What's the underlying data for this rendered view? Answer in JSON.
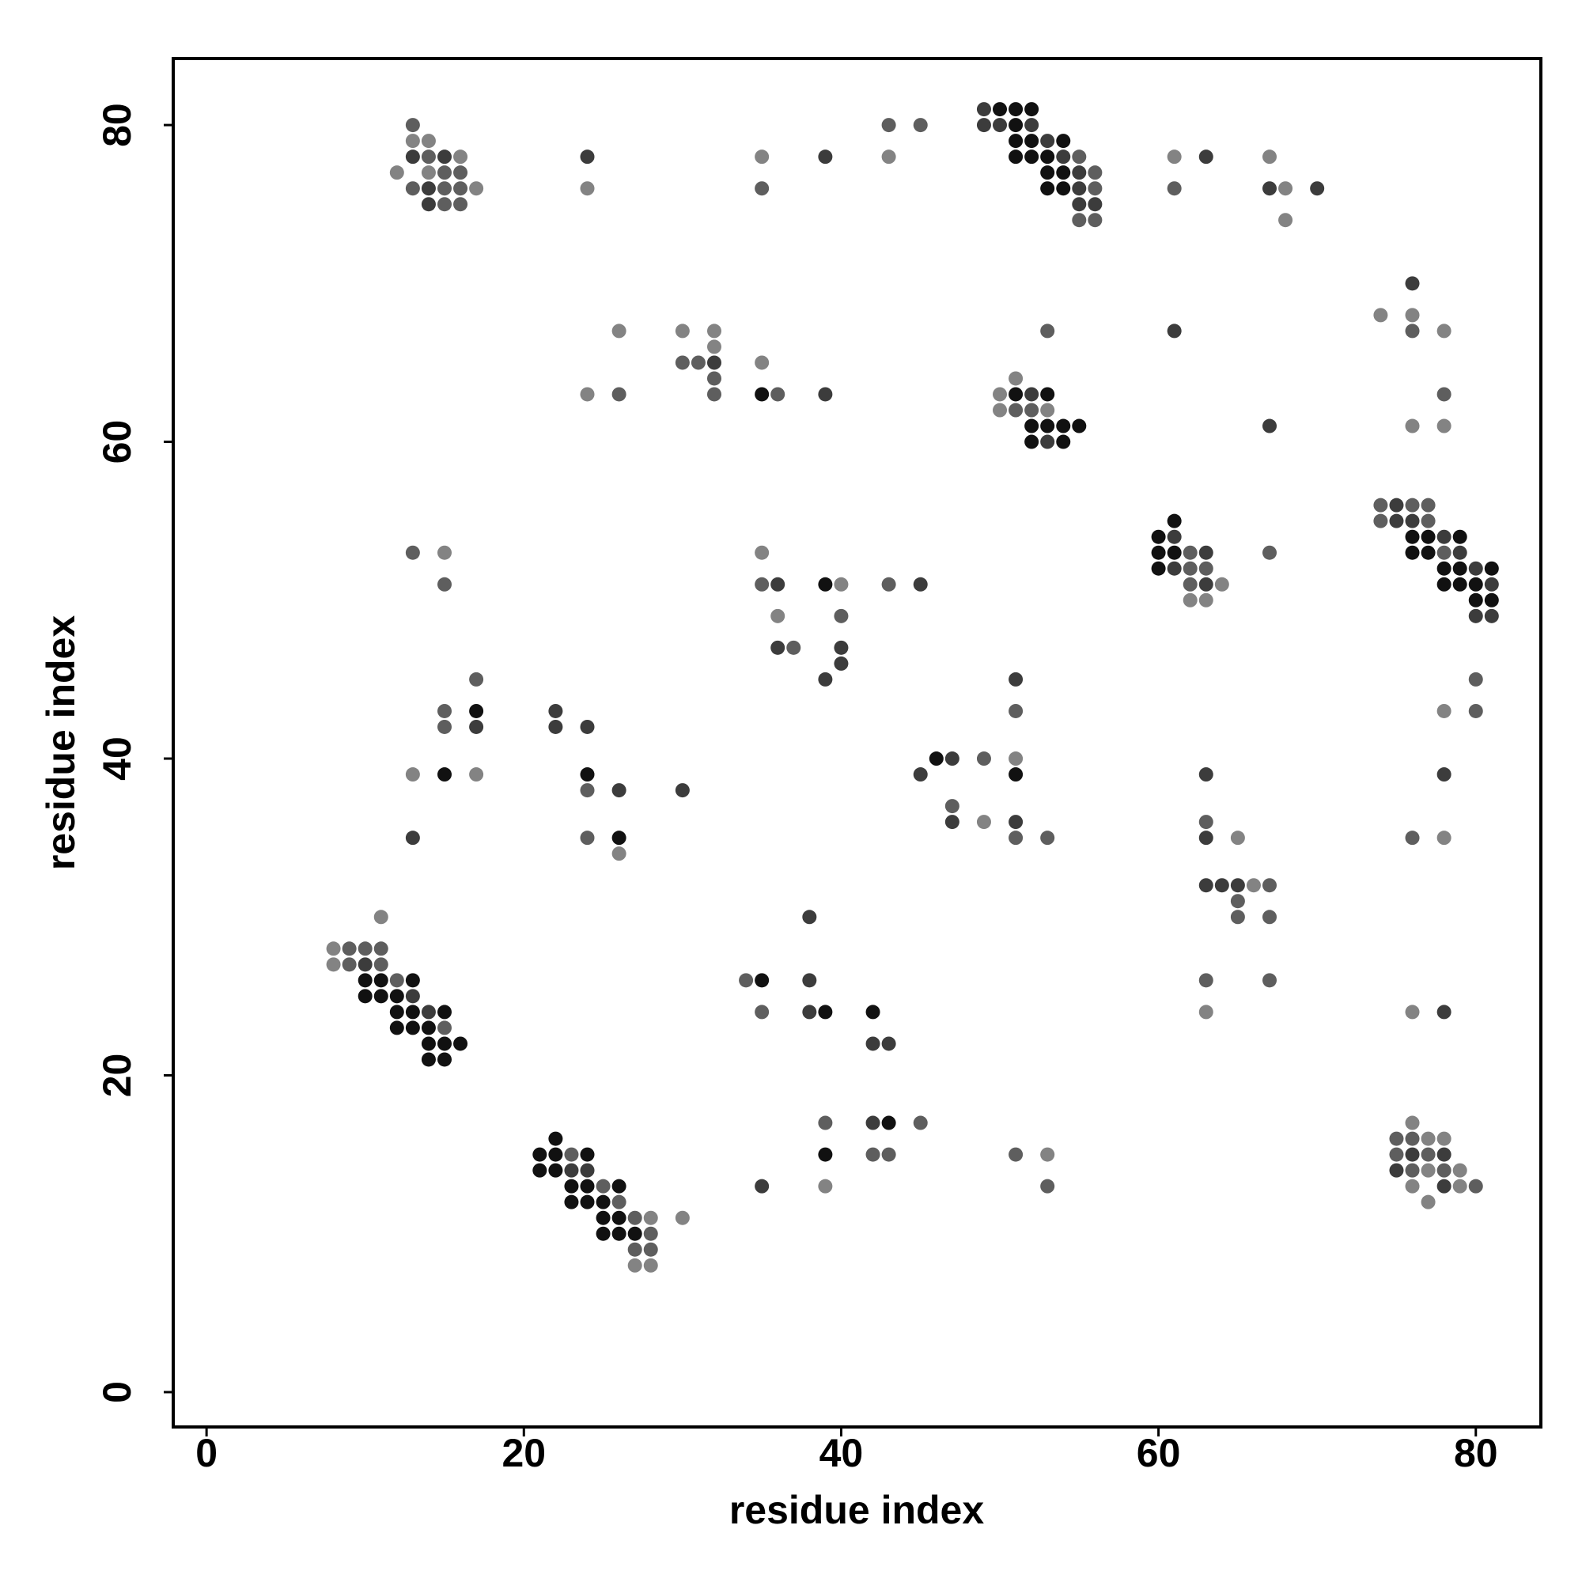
{
  "chart_data": {
    "type": "scatter",
    "xlabel": "residue index",
    "ylabel": "residue index",
    "xlim": [
      -2.1,
      84.1
    ],
    "ylim": [
      -2.2,
      84.2
    ],
    "xticks": [
      0,
      20,
      40,
      60,
      80
    ],
    "yticks": [
      0,
      20,
      40,
      60,
      80
    ],
    "grid": false,
    "x": [
      49,
      50,
      51,
      52,
      13,
      43,
      45,
      49,
      50,
      51,
      52,
      13,
      14,
      51,
      52,
      53,
      54,
      13,
      14,
      15,
      16,
      24,
      35,
      39,
      43,
      51,
      52,
      53,
      54,
      55,
      61,
      63,
      67,
      12,
      14,
      15,
      16,
      53,
      54,
      55,
      56,
      13,
      14,
      15,
      16,
      17,
      24,
      35,
      53,
      54,
      55,
      56,
      61,
      67,
      68,
      70,
      14,
      15,
      16,
      55,
      56,
      55,
      56,
      68,
      76,
      74,
      76,
      26,
      30,
      32,
      53,
      61,
      76,
      78,
      32,
      30,
      31,
      32,
      35,
      32,
      51,
      24,
      26,
      32,
      35,
      36,
      39,
      50,
      51,
      52,
      53,
      78,
      50,
      51,
      52,
      53,
      52,
      53,
      54,
      55,
      67,
      76,
      78,
      52,
      53,
      54,
      74,
      75,
      76,
      77,
      61,
      74,
      75,
      76,
      77,
      60,
      61,
      76,
      77,
      78,
      79,
      13,
      15,
      35,
      60,
      61,
      62,
      63,
      67,
      76,
      77,
      78,
      79,
      60,
      61,
      62,
      63,
      78,
      79,
      80,
      81,
      15,
      35,
      36,
      39,
      40,
      43,
      45,
      62,
      63,
      64,
      78,
      79,
      80,
      81,
      62,
      63,
      80,
      81,
      36,
      40,
      80,
      81,
      36,
      37,
      40,
      40,
      17,
      39,
      51,
      80,
      15,
      17,
      22,
      51,
      78,
      80,
      15,
      17,
      22,
      24,
      46,
      47,
      49,
      51,
      13,
      15,
      17,
      24,
      45,
      51,
      63,
      78,
      24,
      26,
      30,
      47,
      47,
      49,
      51,
      63,
      13,
      24,
      26,
      51,
      53,
      63,
      65,
      76,
      78,
      26,
      63,
      64,
      65,
      66,
      67,
      65,
      11,
      38,
      65,
      67,
      8,
      9,
      10,
      11,
      8,
      9,
      10,
      11,
      10,
      11,
      12,
      13,
      34,
      35,
      38,
      63,
      67,
      10,
      11,
      12,
      13,
      12,
      13,
      14,
      15,
      35,
      38,
      39,
      42,
      63,
      76,
      78,
      12,
      13,
      14,
      15,
      14,
      15,
      16,
      42,
      43,
      14,
      15,
      39,
      42,
      43,
      45,
      76,
      22,
      75,
      76,
      77,
      78,
      21,
      22,
      23,
      24,
      39,
      42,
      43,
      51,
      53,
      75,
      76,
      77,
      78,
      21,
      22,
      23,
      24,
      75,
      76,
      77,
      78,
      79,
      23,
      24,
      25,
      26,
      35,
      39,
      53,
      76,
      78,
      79,
      80,
      23,
      24,
      25,
      26,
      77,
      25,
      26,
      27,
      28,
      30,
      25,
      26,
      27,
      28,
      27,
      28,
      27,
      28
    ],
    "y": [
      81,
      81,
      81,
      81,
      80,
      80,
      80,
      80,
      80,
      80,
      80,
      79,
      79,
      79,
      79,
      79,
      79,
      78,
      78,
      78,
      78,
      78,
      78,
      78,
      78,
      78,
      78,
      78,
      78,
      78,
      78,
      78,
      78,
      77,
      77,
      77,
      77,
      77,
      77,
      77,
      77,
      76,
      76,
      76,
      76,
      76,
      76,
      76,
      76,
      76,
      76,
      76,
      76,
      76,
      76,
      76,
      75,
      75,
      75,
      75,
      75,
      74,
      74,
      74,
      70,
      68,
      68,
      67,
      67,
      67,
      67,
      67,
      67,
      67,
      66,
      65,
      65,
      65,
      65,
      64,
      64,
      63,
      63,
      63,
      63,
      63,
      63,
      63,
      63,
      63,
      63,
      63,
      62,
      62,
      62,
      62,
      61,
      61,
      61,
      61,
      61,
      61,
      61,
      60,
      60,
      60,
      56,
      56,
      56,
      56,
      55,
      55,
      55,
      55,
      55,
      54,
      54,
      54,
      54,
      54,
      54,
      53,
      53,
      53,
      53,
      53,
      53,
      53,
      53,
      53,
      53,
      53,
      53,
      52,
      52,
      52,
      52,
      52,
      52,
      52,
      52,
      51,
      51,
      51,
      51,
      51,
      51,
      51,
      51,
      51,
      51,
      51,
      51,
      51,
      51,
      50,
      50,
      50,
      50,
      49,
      49,
      49,
      49,
      47,
      47,
      47,
      46,
      45,
      45,
      45,
      45,
      43,
      43,
      43,
      43,
      43,
      43,
      42,
      42,
      42,
      42,
      40,
      40,
      40,
      40,
      39,
      39,
      39,
      39,
      39,
      39,
      39,
      39,
      38,
      38,
      38,
      37,
      36,
      36,
      36,
      36,
      35,
      35,
      35,
      35,
      35,
      35,
      35,
      35,
      35,
      34,
      32,
      32,
      32,
      32,
      32,
      31,
      30,
      30,
      30,
      30,
      28,
      28,
      28,
      28,
      27,
      27,
      27,
      27,
      26,
      26,
      26,
      26,
      26,
      26,
      26,
      26,
      26,
      25,
      25,
      25,
      25,
      24,
      24,
      24,
      24,
      24,
      24,
      24,
      24,
      24,
      24,
      24,
      23,
      23,
      23,
      23,
      22,
      22,
      22,
      22,
      22,
      21,
      21,
      17,
      17,
      17,
      17,
      17,
      16,
      16,
      16,
      16,
      16,
      15,
      15,
      15,
      15,
      15,
      15,
      15,
      15,
      15,
      15,
      15,
      15,
      15,
      14,
      14,
      14,
      14,
      14,
      14,
      14,
      14,
      14,
      13,
      13,
      13,
      13,
      13,
      13,
      13,
      13,
      13,
      13,
      13,
      12,
      12,
      12,
      12,
      12,
      11,
      11,
      11,
      11,
      11,
      10,
      10,
      10,
      10,
      9,
      9,
      8,
      8
    ],
    "colors": [
      "#3c3c3c",
      "#111111",
      "#111111",
      "#111111",
      "#5e5e5e",
      "#5e5e5e",
      "#5e5e5e",
      "#3c3c3c",
      "#3c3c3c",
      "#111111",
      "#3c3c3c",
      "#838383",
      "#838383",
      "#111111",
      "#111111",
      "#3c3c3c",
      "#111111",
      "#3c3c3c",
      "#5e5e5e",
      "#3c3c3c",
      "#838383",
      "#3c3c3c",
      "#838383",
      "#3c3c3c",
      "#838383",
      "#111111",
      "#111111",
      "#111111",
      "#3c3c3c",
      "#5e5e5e",
      "#838383",
      "#3c3c3c",
      "#838383",
      "#838383",
      "#838383",
      "#5e5e5e",
      "#5e5e5e",
      "#111111",
      "#111111",
      "#3c3c3c",
      "#5e5e5e",
      "#5e5e5e",
      "#3c3c3c",
      "#5e5e5e",
      "#5e5e5e",
      "#838383",
      "#838383",
      "#5e5e5e",
      "#111111",
      "#111111",
      "#3c3c3c",
      "#5e5e5e",
      "#5e5e5e",
      "#3c3c3c",
      "#838383",
      "#3c3c3c",
      "#3c3c3c",
      "#5e5e5e",
      "#5e5e5e",
      "#3c3c3c",
      "#3c3c3c",
      "#5e5e5e",
      "#5e5e5e",
      "#838383",
      "#3c3c3c",
      "#838383",
      "#838383",
      "#838383",
      "#838383",
      "#838383",
      "#5e5e5e",
      "#3c3c3c",
      "#5e5e5e",
      "#838383",
      "#838383",
      "#5e5e5e",
      "#5e5e5e",
      "#3c3c3c",
      "#838383",
      "#5e5e5e",
      "#838383",
      "#838383",
      "#5e5e5e",
      "#5e5e5e",
      "#111111",
      "#5e5e5e",
      "#3c3c3c",
      "#838383",
      "#111111",
      "#3c3c3c",
      "#111111",
      "#5e5e5e",
      "#838383",
      "#5e5e5e",
      "#5e5e5e",
      "#838383",
      "#111111",
      "#111111",
      "#111111",
      "#111111",
      "#3c3c3c",
      "#838383",
      "#838383",
      "#111111",
      "#3c3c3c",
      "#111111",
      "#5e5e5e",
      "#3c3c3c",
      "#5e5e5e",
      "#5e5e5e",
      "#111111",
      "#5e5e5e",
      "#3c3c3c",
      "#3c3c3c",
      "#5e5e5e",
      "#111111",
      "#3c3c3c",
      "#111111",
      "#111111",
      "#3c3c3c",
      "#111111",
      "#5e5e5e",
      "#838383",
      "#838383",
      "#111111",
      "#111111",
      "#5e5e5e",
      "#3c3c3c",
      "#5e5e5e",
      "#111111",
      "#111111",
      "#5e5e5e",
      "#3c3c3c",
      "#111111",
      "#3c3c3c",
      "#5e5e5e",
      "#5e5e5e",
      "#111111",
      "#111111",
      "#3c3c3c",
      "#111111",
      "#5e5e5e",
      "#5e5e5e",
      "#3c3c3c",
      "#111111",
      "#838383",
      "#5e5e5e",
      "#3c3c3c",
      "#5e5e5e",
      "#3c3c3c",
      "#838383",
      "#111111",
      "#111111",
      "#111111",
      "#3c3c3c",
      "#838383",
      "#838383",
      "#111111",
      "#111111",
      "#838383",
      "#5e5e5e",
      "#3c3c3c",
      "#3c3c3c",
      "#3c3c3c",
      "#5e5e5e",
      "#3c3c3c",
      "#3c3c3c",
      "#5e5e5e",
      "#3c3c3c",
      "#3c3c3c",
      "#5e5e5e",
      "#5e5e5e",
      "#111111",
      "#3c3c3c",
      "#5e5e5e",
      "#838383",
      "#5e5e5e",
      "#5e5e5e",
      "#3c3c3c",
      "#3c3c3c",
      "#3c3c3c",
      "#111111",
      "#3c3c3c",
      "#5e5e5e",
      "#838383",
      "#838383",
      "#111111",
      "#838383",
      "#111111",
      "#3c3c3c",
      "#111111",
      "#3c3c3c",
      "#3c3c3c",
      "#5e5e5e",
      "#3c3c3c",
      "#3c3c3c",
      "#5e5e5e",
      "#3c3c3c",
      "#838383",
      "#3c3c3c",
      "#5e5e5e",
      "#3c3c3c",
      "#5e5e5e",
      "#111111",
      "#5e5e5e",
      "#5e5e5e",
      "#3c3c3c",
      "#838383",
      "#5e5e5e",
      "#838383",
      "#838383",
      "#3c3c3c",
      "#3c3c3c",
      "#3c3c3c",
      "#838383",
      "#5e5e5e",
      "#5e5e5e",
      "#838383",
      "#3c3c3c",
      "#5e5e5e",
      "#5e5e5e",
      "#838383",
      "#5e5e5e",
      "#5e5e5e",
      "#5e5e5e",
      "#838383",
      "#5e5e5e",
      "#3c3c3c",
      "#5e5e5e",
      "#111111",
      "#111111",
      "#5e5e5e",
      "#111111",
      "#5e5e5e",
      "#111111",
      "#3c3c3c",
      "#5e5e5e",
      "#5e5e5e",
      "#111111",
      "#111111",
      "#111111",
      "#3c3c3c",
      "#111111",
      "#111111",
      "#3c3c3c",
      "#111111",
      "#5e5e5e",
      "#3c3c3c",
      "#111111",
      "#111111",
      "#838383",
      "#838383",
      "#3c3c3c",
      "#111111",
      "#111111",
      "#111111",
      "#5e5e5e",
      "#111111",
      "#111111",
      "#111111",
      "#3c3c3c",
      "#3c3c3c",
      "#111111",
      "#111111",
      "#5e5e5e",
      "#3c3c3c",
      "#111111",
      "#5e5e5e",
      "#838383",
      "#111111",
      "#5e5e5e",
      "#5e5e5e",
      "#838383",
      "#838383",
      "#111111",
      "#111111",
      "#5e5e5e",
      "#111111",
      "#111111",
      "#5e5e5e",
      "#5e5e5e",
      "#5e5e5e",
      "#838383",
      "#5e5e5e",
      "#3c3c3c",
      "#5e5e5e",
      "#3c3c3c",
      "#111111",
      "#111111",
      "#3c3c3c",
      "#3c3c3c",
      "#3c3c3c",
      "#5e5e5e",
      "#838383",
      "#5e5e5e",
      "#838383",
      "#111111",
      "#111111",
      "#5e5e5e",
      "#111111",
      "#3c3c3c",
      "#838383",
      "#5e5e5e",
      "#838383",
      "#3c3c3c",
      "#838383",
      "#5e5e5e",
      "#111111",
      "#111111",
      "#111111",
      "#5e5e5e",
      "#838383",
      "#111111",
      "#111111",
      "#5e5e5e",
      "#838383",
      "#838383",
      "#111111",
      "#111111",
      "#111111",
      "#5e5e5e",
      "#5e5e5e",
      "#5e5e5e",
      "#838383",
      "#838383"
    ]
  }
}
